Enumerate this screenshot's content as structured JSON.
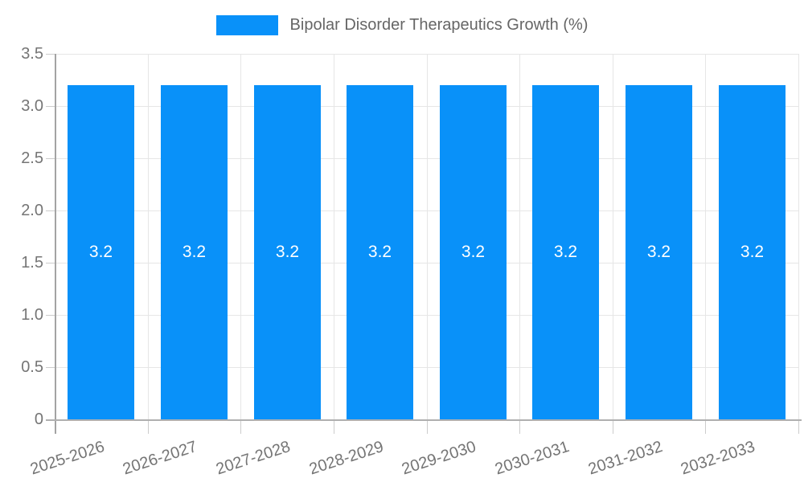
{
  "chart": {
    "colors": {
      "bar": "#0991f9",
      "axis_text": "#757575",
      "legend_text": "#666666",
      "gridline": "#e6e6e6",
      "tick": "#cccccc",
      "axis_line": "#b0b0b0",
      "bar_label_text": "#ffffff",
      "background": "#ffffff"
    }
  },
  "chart_data": {
    "type": "bar",
    "title": "",
    "legend": "Bipolar Disorder Therapeutics Growth (%)",
    "legend_position": "top-center",
    "categories": [
      "2025-2026",
      "2026-2027",
      "2027-2028",
      "2028-2029",
      "2029-2030",
      "2030-2031",
      "2031-2032",
      "2032-2033"
    ],
    "values": [
      3.2,
      3.2,
      3.2,
      3.2,
      3.2,
      3.2,
      3.2,
      3.2
    ],
    "bar_labels": [
      "3.2",
      "3.2",
      "3.2",
      "3.2",
      "3.2",
      "3.2",
      "3.2",
      "3.2"
    ],
    "xlabel": "",
    "ylabel": "",
    "ylim": [
      0,
      3.5
    ],
    "ytick_labels": [
      "0",
      "0.5",
      "1.0",
      "1.5",
      "2.0",
      "2.5",
      "3.0",
      "3.5"
    ],
    "grid": true,
    "x_label_rotation_deg": -18
  }
}
